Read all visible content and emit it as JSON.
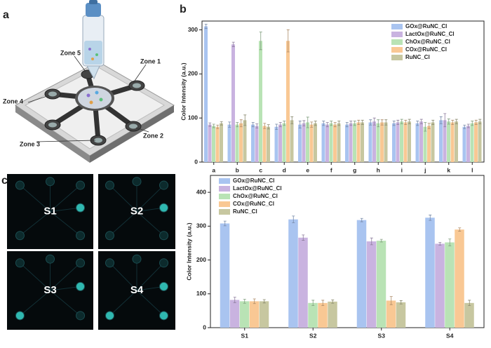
{
  "panels": {
    "labels": [
      "a",
      "b",
      "c"
    ]
  },
  "diagram": {
    "zones": [
      "Zone 1",
      "Zone 2",
      "Zone 3",
      "Zone 4",
      "Zone 5"
    ]
  },
  "images": {
    "labels": [
      "S1",
      "S2",
      "S3",
      "S4"
    ]
  },
  "chart_data": [
    {
      "type": "bar",
      "ylabel": "Color Intensity (a.u.)",
      "categories": [
        "a",
        "b",
        "c",
        "d",
        "e",
        "f",
        "g",
        "h",
        "i",
        "j",
        "k",
        "l"
      ],
      "ylim": [
        0,
        320
      ],
      "yticks": [
        0,
        100,
        200,
        300
      ],
      "legend": "upper right",
      "series": [
        {
          "name": "GOx@RuNC_Cl",
          "color": "#a9c4f0",
          "values": [
            308,
            85,
            85,
            80,
            85,
            88,
            85,
            90,
            88,
            88,
            95,
            80
          ],
          "errors": [
            5,
            6,
            5,
            6,
            8,
            5,
            5,
            6,
            5,
            5,
            8,
            4
          ]
        },
        {
          "name": "LactOx@RuNC_Cl",
          "color": "#c9b3e0",
          "values": [
            85,
            267,
            82,
            85,
            88,
            85,
            88,
            92,
            90,
            92,
            95,
            82
          ],
          "errors": [
            4,
            5,
            5,
            5,
            6,
            5,
            5,
            8,
            5,
            5,
            15,
            4
          ]
        },
        {
          "name": "ChOx@RuNC_Cl",
          "color": "#b9e3b5",
          "values": [
            82,
            85,
            275,
            88,
            90,
            88,
            88,
            88,
            92,
            80,
            92,
            88
          ],
          "errors": [
            4,
            5,
            20,
            5,
            12,
            5,
            5,
            8,
            5,
            10,
            6,
            5
          ]
        },
        {
          "name": "COx@RuNC_Cl",
          "color": "#f9c894",
          "values": [
            80,
            88,
            82,
            275,
            85,
            85,
            90,
            90,
            90,
            82,
            90,
            90
          ],
          "errors": [
            4,
            8,
            6,
            25,
            6,
            5,
            5,
            6,
            5,
            6,
            5,
            5
          ]
        },
        {
          "name": "RuNC_Cl",
          "color": "#c7c7a0",
          "values": [
            88,
            95,
            80,
            95,
            88,
            88,
            90,
            90,
            92,
            90,
            92,
            92
          ],
          "errors": [
            4,
            12,
            5,
            8,
            5,
            5,
            5,
            6,
            5,
            5,
            5,
            5
          ]
        }
      ]
    },
    {
      "type": "bar",
      "ylabel": "Color Intensity (a.u.)",
      "categories": [
        "S1",
        "S2",
        "S3",
        "S4"
      ],
      "ylim": [
        0,
        450
      ],
      "yticks": [
        0,
        100,
        200,
        300,
        400
      ],
      "legend": "upper left",
      "series": [
        {
          "name": "GOx@RuNC_Cl",
          "color": "#a9c4f0",
          "values": [
            308,
            320,
            318,
            325
          ],
          "errors": [
            7,
            10,
            5,
            8
          ]
        },
        {
          "name": "LactOx@RuNC_Cl",
          "color": "#c9b3e0",
          "values": [
            82,
            266,
            255,
            248
          ],
          "errors": [
            8,
            8,
            10,
            4
          ]
        },
        {
          "name": "ChOx@RuNC_Cl",
          "color": "#b9e3b5",
          "values": [
            78,
            73,
            257,
            252
          ],
          "errors": [
            6,
            8,
            4,
            10
          ]
        },
        {
          "name": "COx@RuNC_Cl",
          "color": "#f9c894",
          "values": [
            78,
            73,
            80,
            290
          ],
          "errors": [
            7,
            8,
            12,
            5
          ]
        },
        {
          "name": "RuNC_Cl",
          "color": "#c7c7a0",
          "values": [
            78,
            77,
            75,
            73
          ],
          "errors": [
            5,
            5,
            5,
            8
          ]
        }
      ]
    }
  ]
}
